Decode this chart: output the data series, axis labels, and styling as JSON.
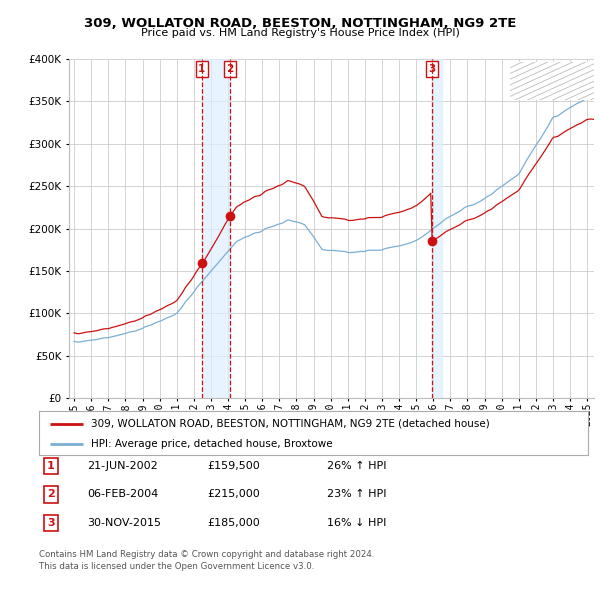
{
  "title": "309, WOLLATON ROAD, BEESTON, NOTTINGHAM, NG9 2TE",
  "subtitle": "Price paid vs. HM Land Registry's House Price Index (HPI)",
  "legend_line1": "309, WOLLATON ROAD, BEESTON, NOTTINGHAM, NG9 2TE (detached house)",
  "legend_line2": "HPI: Average price, detached house, Broxtowe",
  "footer1": "Contains HM Land Registry data © Crown copyright and database right 2024.",
  "footer2": "This data is licensed under the Open Government Licence v3.0.",
  "transactions": [
    {
      "num": "1",
      "date": "21-JUN-2002",
      "price": "£159,500",
      "hpi": "26% ↑ HPI",
      "x": 2002.47
    },
    {
      "num": "2",
      "date": "06-FEB-2004",
      "price": "£215,000",
      "hpi": "23% ↑ HPI",
      "x": 2004.1
    },
    {
      "num": "3",
      "date": "30-NOV-2015",
      "price": "£185,000",
      "hpi": "16% ↓ HPI",
      "x": 2015.92
    }
  ],
  "transaction_values": [
    159500,
    215000,
    185000
  ],
  "hpi_color": "#7bafd4",
  "price_color": "#cc1111",
  "vline_color": "#cc1111",
  "shade_color": "#ddeeff",
  "bg_color": "#ffffff",
  "grid_color": "#cccccc",
  "ylim": [
    0,
    400000
  ],
  "xlim_start": 1994.7,
  "xlim_end": 2025.4
}
